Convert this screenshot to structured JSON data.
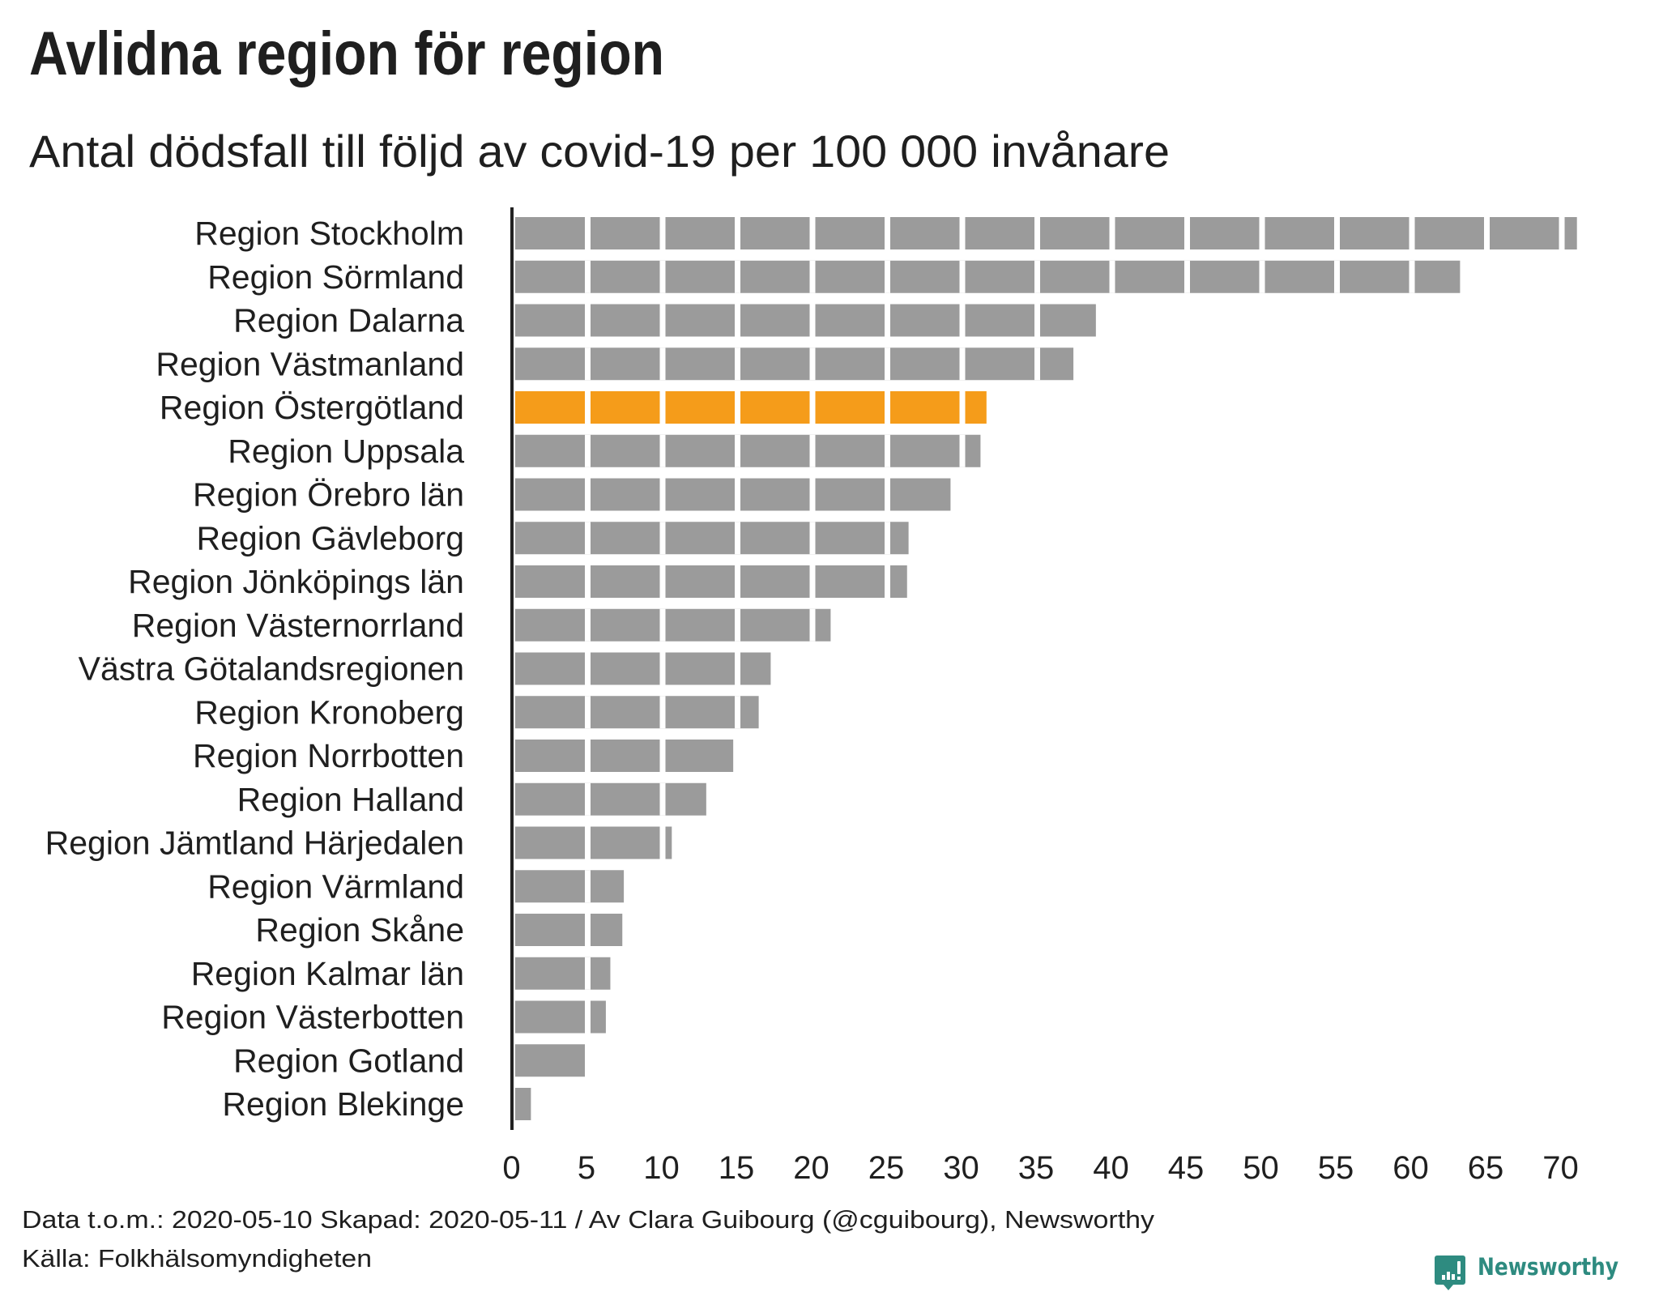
{
  "colors": {
    "bar": "#9b9b9b",
    "highlight": "#f59c1a",
    "text": "#1f1f1f",
    "axis": "#222222",
    "brand": "#2e8b80"
  },
  "chart_data": {
    "type": "bar",
    "orientation": "horizontal",
    "title": "Avlidna region för region",
    "subtitle": "Antal dödsfall till följd av covid-19 per 100 000 invånare",
    "xlabel": "",
    "ylabel": "",
    "xlim": [
      0,
      70
    ],
    "x_ticks": [
      0,
      5,
      10,
      15,
      20,
      25,
      30,
      35,
      40,
      45,
      50,
      55,
      60,
      65,
      70
    ],
    "segment_step": 5,
    "grid": false,
    "highlighted_category": "Region Östergötland",
    "categories": [
      "Region Stockholm",
      "Region Sörmland",
      "Region Dalarna",
      "Region Västmanland",
      "Region Östergötland",
      "Region Uppsala",
      "Region Örebro län",
      "Region Gävleborg",
      "Region Jönköpings län",
      "Region Västernorrland",
      "Västra Götalandsregionen",
      "Region Kronoberg",
      "Region Norrbotten",
      "Region Halland",
      "Region Jämtland Härjedalen",
      "Region Värmland",
      "Region Skåne",
      "Region Kalmar län",
      "Region Västerbotten",
      "Region Gotland",
      "Region Blekinge"
    ],
    "values": [
      71.2,
      63.4,
      39.1,
      37.6,
      31.8,
      31.4,
      29.4,
      26.6,
      26.5,
      21.4,
      17.4,
      16.6,
      14.9,
      13.1,
      10.8,
      7.6,
      7.5,
      6.7,
      6.4,
      5.0,
      1.4
    ]
  },
  "footer": {
    "line1": "Data t.o.m.: 2020-05-10 Skapad: 2020-05-11 / Av Clara Guibourg (@cguibourg), Newsworthy",
    "line2": "Källa: Folkhälsomyndigheten"
  },
  "brand": {
    "name": "Newsworthy",
    "icon": "newsworthy-logo-icon"
  }
}
